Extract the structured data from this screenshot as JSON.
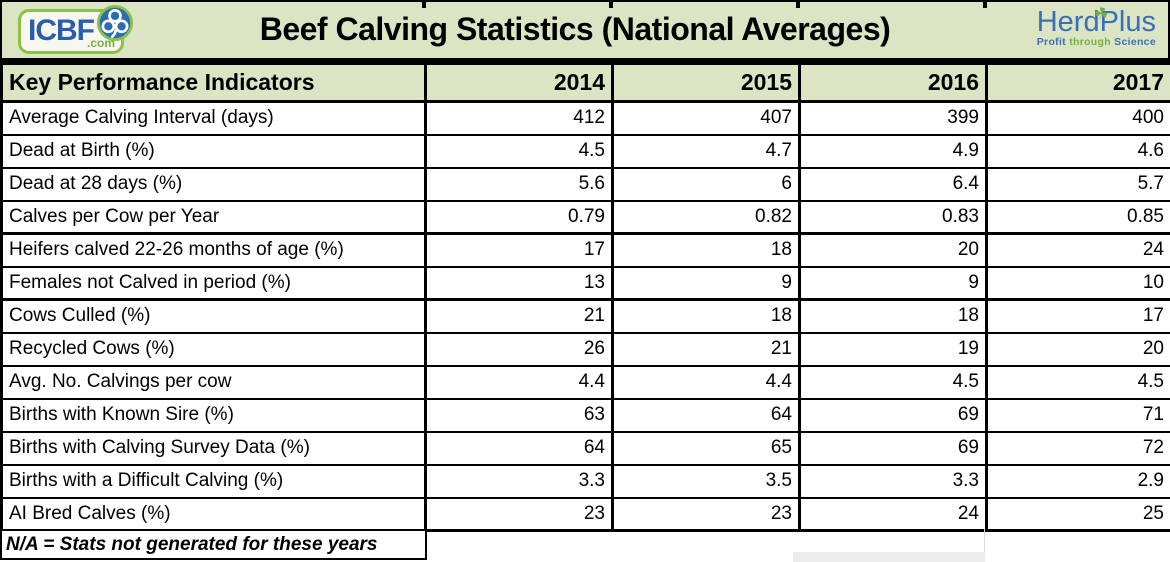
{
  "title": "Beef Calving Statistics (National Averages)",
  "branding": {
    "icbf": {
      "name": "ICBF",
      "tld": ".com"
    },
    "herdplus": {
      "name": "HerdPlus",
      "tagline_word1": "Profit",
      "tagline_word2": "through",
      "tagline_word3": "Science"
    }
  },
  "table": {
    "header": {
      "label": "Key Performance Indicators",
      "years": [
        "2014",
        "2015",
        "2016",
        "2017"
      ]
    },
    "rows": [
      {
        "label": "Average Calving Interval (days)",
        "values": [
          "412",
          "407",
          "399",
          "400"
        ]
      },
      {
        "label": "Dead at Birth (%)",
        "values": [
          "4.5",
          "4.7",
          "4.9",
          "4.6"
        ]
      },
      {
        "label": "Dead at 28 days (%)",
        "values": [
          "5.6",
          "6",
          "6.4",
          "5.7"
        ]
      },
      {
        "label": "Calves per Cow per Year",
        "values": [
          "0.79",
          "0.82",
          "0.83",
          "0.85"
        ]
      },
      {
        "label": "Heifers calved 22-26 months of age (%)",
        "values": [
          "17",
          "18",
          "20",
          "24"
        ]
      },
      {
        "label": "Females not Calved in period (%)",
        "values": [
          "13",
          "9",
          "9",
          "10"
        ]
      },
      {
        "label": "Cows Culled (%)",
        "values": [
          "21",
          "18",
          "18",
          "17"
        ]
      },
      {
        "label": "Recycled Cows (%)",
        "values": [
          "26",
          "21",
          "19",
          "20"
        ]
      },
      {
        "label": "Avg. No. Calvings per cow",
        "values": [
          "4.4",
          "4.4",
          "4.5",
          "4.5"
        ]
      },
      {
        "label": "Births with Known Sire (%)",
        "values": [
          "63",
          "64",
          "69",
          "71"
        ]
      },
      {
        "label": "Births with Calving Survey Data (%)",
        "values": [
          "64",
          "65",
          "69",
          "72"
        ]
      },
      {
        "label": "Births with a Difficult Calving (%)",
        "values": [
          "3.3",
          "3.5",
          "3.3",
          "2.9"
        ]
      },
      {
        "label": "AI Bred Calves (%)",
        "values": [
          "23",
          "23",
          "24",
          "25"
        ]
      }
    ],
    "footnote": "N/A = Stats not generated for these years"
  },
  "colors": {
    "band_green": "#dbe5c4",
    "grid_black": "#000000",
    "icbf_blue": "#2d5ca8",
    "logo_green": "#76b043",
    "herdplus_blue": "#3a6fb8"
  },
  "chart_data": {
    "type": "table",
    "title": "Beef Calving Statistics (National Averages)",
    "columns": [
      "Key Performance Indicators",
      "2014",
      "2015",
      "2016",
      "2017"
    ],
    "rows": [
      [
        "Average Calving Interval (days)",
        412,
        407,
        399,
        400
      ],
      [
        "Dead at Birth (%)",
        4.5,
        4.7,
        4.9,
        4.6
      ],
      [
        "Dead at 28 days (%)",
        5.6,
        6,
        6.4,
        5.7
      ],
      [
        "Calves per Cow per Year",
        0.79,
        0.82,
        0.83,
        0.85
      ],
      [
        "Heifers calved 22-26 months of age (%)",
        17,
        18,
        20,
        24
      ],
      [
        "Females not Calved in period (%)",
        13,
        9,
        9,
        10
      ],
      [
        "Cows Culled (%)",
        21,
        18,
        18,
        17
      ],
      [
        "Recycled Cows (%)",
        26,
        21,
        19,
        20
      ],
      [
        "Avg. No. Calvings per cow",
        4.4,
        4.4,
        4.5,
        4.5
      ],
      [
        "Births with Known Sire (%)",
        63,
        64,
        69,
        71
      ],
      [
        "Births with Calving Survey Data (%)",
        64,
        65,
        69,
        72
      ],
      [
        "Births with a Difficult Calving (%)",
        3.3,
        3.5,
        3.3,
        2.9
      ],
      [
        "AI Bred Calves (%)",
        23,
        23,
        24,
        25
      ]
    ],
    "footnote": "N/A = Stats not generated for these years"
  }
}
